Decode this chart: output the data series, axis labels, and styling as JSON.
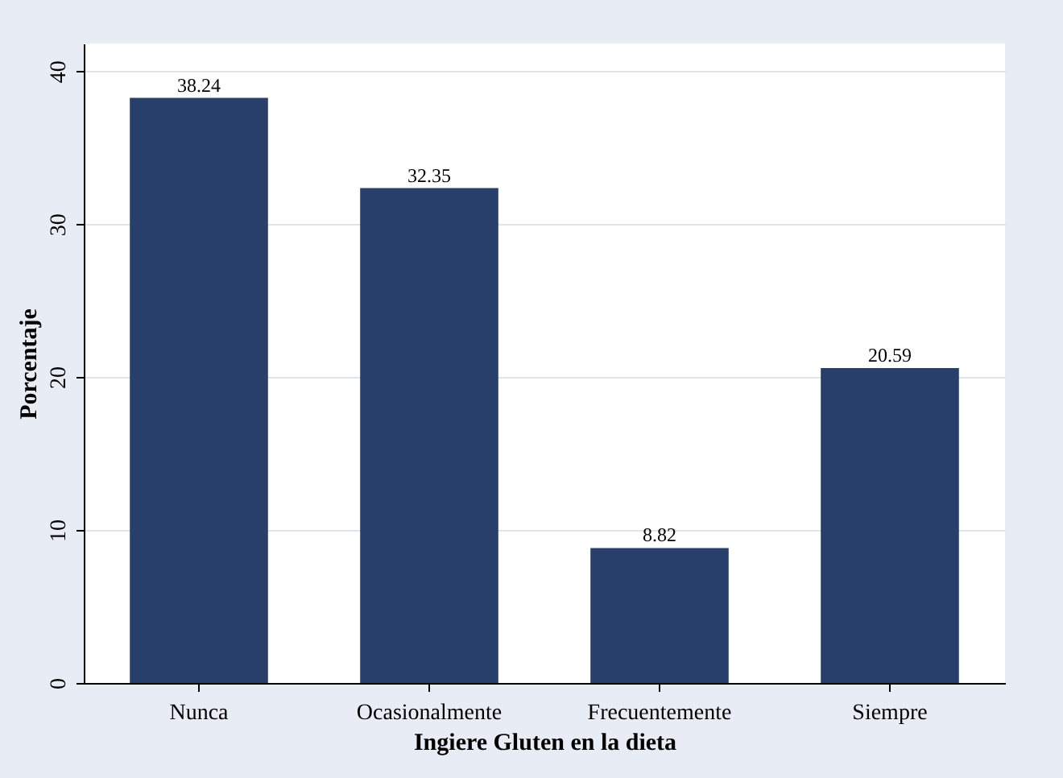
{
  "chart_data": {
    "type": "bar",
    "xlabel": "Ingiere Gluten en la dieta",
    "ylabel": "Porcentaje",
    "categories": [
      "Nunca",
      "Ocasionalmente",
      "Frecuentemente",
      "Siempre"
    ],
    "values": [
      38.24,
      32.35,
      8.82,
      20.59
    ],
    "color": "#283f6c",
    "ylim": [
      0,
      41.8
    ],
    "yticks": [
      0,
      10,
      20,
      30,
      40
    ],
    "grid": "y",
    "data_labels": true
  }
}
